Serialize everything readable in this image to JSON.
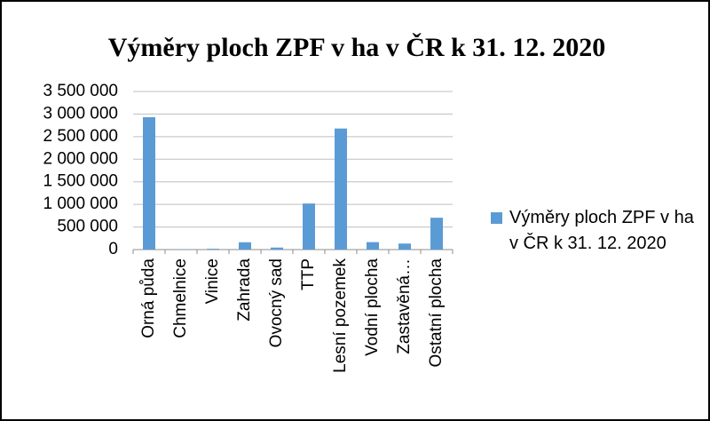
{
  "chart_data": {
    "type": "bar",
    "title": "Výměry ploch ZPF v ha v ČR k 31. 12. 2020",
    "categories": [
      "Orná půda",
      "Chmelnice",
      "Vinice",
      "Zahrada",
      "Ovocný sad",
      "TTP",
      "Lesní pozemek",
      "Vodní plocha",
      "Zastavěná…",
      "Ostatní plocha"
    ],
    "series": [
      {
        "name": "Výměry ploch ZPF v ha v ČR k 31. 12. 2020",
        "color": "#5b9bd5",
        "values": [
          2930000,
          10000,
          18000,
          162000,
          45000,
          1020000,
          2680000,
          165000,
          133000,
          705000
        ]
      }
    ],
    "ylim": [
      0,
      3500000
    ],
    "yticks": [
      0,
      {
        "value": 500000,
        "label": "500 000"
      },
      {
        "value": 1000000,
        "label": "1 000 000"
      },
      {
        "value": 1500000,
        "label": "1 500 000"
      },
      {
        "value": 2000000,
        "label": "2 000 000"
      },
      {
        "value": 2500000,
        "label": "2 500 000"
      },
      {
        "value": 3000000,
        "label": "3 000 000"
      },
      {
        "value": 3500000,
        "label": "3 500 000"
      }
    ],
    "grid": true,
    "legend": "right"
  }
}
